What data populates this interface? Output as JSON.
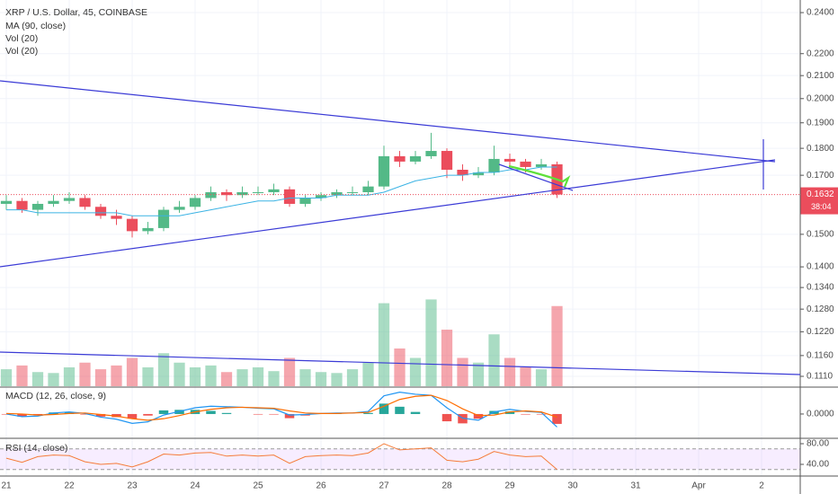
{
  "chart_data": [
    {
      "type": "candlestick",
      "title": "XRP / U.S. Dollar, 45, COINBASE",
      "x": [
        21,
        21.25,
        21.5,
        21.75,
        22,
        22.25,
        22.5,
        22.75,
        23,
        23.25,
        23.5,
        23.75,
        24,
        24.25,
        24.5,
        24.75,
        25,
        25.25,
        25.5,
        25.75,
        26,
        26.25,
        26.5,
        26.75,
        27,
        27.25,
        27.5,
        27.75,
        28,
        28.25,
        28.5,
        28.75,
        29,
        29.25,
        29.5,
        29.75
      ],
      "open": [
        0.16,
        0.161,
        0.158,
        0.16,
        0.161,
        0.162,
        0.159,
        0.156,
        0.155,
        0.151,
        0.152,
        0.158,
        0.159,
        0.162,
        0.164,
        0.163,
        0.164,
        0.164,
        0.165,
        0.16,
        0.162,
        0.163,
        0.164,
        0.164,
        0.166,
        0.177,
        0.175,
        0.177,
        0.179,
        0.172,
        0.17,
        0.171,
        0.176,
        0.175,
        0.173,
        0.174
      ],
      "high": [
        0.163,
        0.162,
        0.161,
        0.163,
        0.164,
        0.163,
        0.16,
        0.158,
        0.156,
        0.154,
        0.159,
        0.161,
        0.163,
        0.166,
        0.165,
        0.166,
        0.166,
        0.167,
        0.166,
        0.163,
        0.164,
        0.165,
        0.166,
        0.168,
        0.181,
        0.179,
        0.179,
        0.186,
        0.18,
        0.174,
        0.173,
        0.181,
        0.178,
        0.176,
        0.176,
        0.175
      ],
      "low": [
        0.158,
        0.157,
        0.156,
        0.159,
        0.16,
        0.158,
        0.155,
        0.153,
        0.149,
        0.15,
        0.151,
        0.157,
        0.158,
        0.161,
        0.161,
        0.162,
        0.163,
        0.163,
        0.159,
        0.159,
        0.161,
        0.162,
        0.163,
        0.163,
        0.165,
        0.173,
        0.174,
        0.176,
        0.169,
        0.168,
        0.169,
        0.17,
        0.173,
        0.171,
        0.172,
        0.162
      ],
      "close": [
        0.161,
        0.158,
        0.16,
        0.161,
        0.162,
        0.159,
        0.156,
        0.155,
        0.151,
        0.152,
        0.158,
        0.159,
        0.162,
        0.164,
        0.163,
        0.164,
        0.164,
        0.165,
        0.16,
        0.162,
        0.163,
        0.164,
        0.164,
        0.166,
        0.177,
        0.175,
        0.177,
        0.179,
        0.172,
        0.17,
        0.171,
        0.176,
        0.175,
        0.173,
        0.174,
        0.1632
      ],
      "up_color": "#53b987",
      "down_color": "#eb4d5c",
      "series": [
        {
          "name": "MA (90, close)",
          "color": "#3bb3e4",
          "values": [
            0.158,
            0.158,
            0.157,
            0.157,
            0.157,
            0.157,
            0.157,
            0.157,
            0.156,
            0.156,
            0.156,
            0.156,
            0.157,
            0.158,
            0.159,
            0.16,
            0.161,
            0.161,
            0.162,
            0.162,
            0.162,
            0.163,
            0.163,
            0.163,
            0.164,
            0.166,
            0.168,
            0.169,
            0.17,
            0.17,
            0.171,
            0.171,
            0.172,
            0.172,
            0.173,
            0.173
          ]
        }
      ],
      "volume": [
        {
          "name": "Vol (20)",
          "values": [
            18,
            22,
            15,
            14,
            20,
            25,
            18,
            22,
            30,
            20,
            35,
            25,
            20,
            22,
            15,
            18,
            20,
            16,
            30,
            18,
            15,
            14,
            18,
            25,
            88,
            40,
            30,
            92,
            60,
            30,
            25,
            55,
            30,
            20,
            18,
            85
          ],
          "ylim": [
            0,
            100
          ]
        },
        {
          "name": "Vol (20)"
        }
      ],
      "last_price": {
        "label": "0.1632",
        "countdown": "38:04"
      },
      "log_scale": true,
      "ylim": [
        0.1087,
        0.2465
      ],
      "yticks": [
        {
          "value": 0.24,
          "label": "0.2400"
        },
        {
          "value": 0.22,
          "label": "0.2200"
        },
        {
          "value": 0.21,
          "label": "0.2100"
        },
        {
          "value": 0.2,
          "label": "0.2000"
        },
        {
          "value": 0.19,
          "label": "0.1900"
        },
        {
          "value": 0.18,
          "label": "0.1800"
        },
        {
          "value": 0.17,
          "label": "0.1700"
        },
        {
          "value": 0.15,
          "label": "0.1500"
        },
        {
          "value": 0.14,
          "label": "0.1400"
        },
        {
          "value": 0.134,
          "label": "0.1340"
        },
        {
          "value": 0.128,
          "label": "0.1280"
        },
        {
          "value": 0.122,
          "label": "0.1220"
        },
        {
          "value": 0.116,
          "label": "0.1160"
        },
        {
          "value": 0.111,
          "label": "0.1110"
        }
      ],
      "xlim": [
        20.9,
        33.614
      ],
      "xticks": [
        21,
        22,
        23,
        24,
        25,
        26,
        27,
        28,
        29,
        30,
        31,
        {
          "value": 32,
          "label": "Apr"
        },
        {
          "value": 33,
          "label": "2"
        }
      ],
      "grid": true
    },
    {
      "type": "macd",
      "title": "MACD (12, 26, close, 9)",
      "series": [
        {
          "name": "MACD",
          "color": "#2196f3",
          "values": [
            0,
            -0.0005,
            -0.0004,
            0.0002,
            0.0004,
            0.0001,
            -0.0006,
            -0.001,
            -0.0018,
            -0.0015,
            -0.0002,
            0.0005,
            0.0012,
            0.0015,
            0.0014,
            0.0013,
            0.0011,
            0.001,
            -0.0002,
            -0.0001,
            0.0001,
            0.0002,
            0.0002,
            0.0005,
            0.0035,
            0.0042,
            0.0038,
            0.0036,
            0.0012,
            -0.0008,
            -0.0012,
            0.0004,
            0.0009,
            0.0005,
            0.0003,
            -0.0025
          ]
        },
        {
          "name": "Signal",
          "color": "#ff6d00",
          "values": [
            0.0001,
            0,
            -0.0002,
            -0.0001,
            0.0001,
            0.0002,
            -0.0001,
            -0.0004,
            -0.0009,
            -0.0012,
            -0.0009,
            -0.0003,
            0.0004,
            0.0009,
            0.0012,
            0.0013,
            0.0012,
            0.0011,
            0.0006,
            0.0002,
            0.0001,
            0.0001,
            0.0002,
            0.0003,
            0.0015,
            0.0028,
            0.0034,
            0.0036,
            0.0026,
            0.001,
            -0.0003,
            -0.0002,
            0.0004,
            0.0006,
            0.0004,
            -0.0006
          ]
        }
      ],
      "histogram": [
        -0.0001,
        -0.0005,
        -0.0002,
        0.0003,
        0.0003,
        -0.0001,
        -0.0005,
        -0.0006,
        -0.0009,
        -0.0003,
        0.0007,
        0.0008,
        0.0008,
        0.0006,
        0.0002,
        0,
        -0.0001,
        -0.0001,
        -0.0008,
        -0.0003,
        0,
        0.0001,
        0,
        0.0002,
        0.002,
        0.0014,
        0.0004,
        0,
        -0.0014,
        -0.0018,
        -0.0009,
        0.0006,
        0.0005,
        -0.0001,
        -0.0001,
        -0.0019
      ],
      "up_color": "#26a69a",
      "down_color": "#ef5350",
      "ylim": [
        -0.0045,
        0.005
      ],
      "yticks": [
        {
          "value": 0,
          "label": "0.0000"
        }
      ]
    },
    {
      "type": "rsi",
      "title": "RSI (14, close)",
      "color": "#f57c38",
      "values": [
        52,
        44,
        55,
        58,
        57,
        45,
        40,
        42,
        35,
        45,
        60,
        58,
        62,
        63,
        56,
        58,
        56,
        58,
        42,
        55,
        57,
        58,
        57,
        62,
        80,
        68,
        70,
        72,
        48,
        45,
        50,
        65,
        58,
        55,
        56,
        30
      ],
      "band": [
        70,
        30
      ],
      "band_color": "#9915ff",
      "ylim": [
        17.4,
        88.7
      ],
      "yticks": [
        {
          "value": 80,
          "label": "80.00"
        },
        {
          "value": 40,
          "label": "40.00"
        }
      ]
    }
  ]
}
